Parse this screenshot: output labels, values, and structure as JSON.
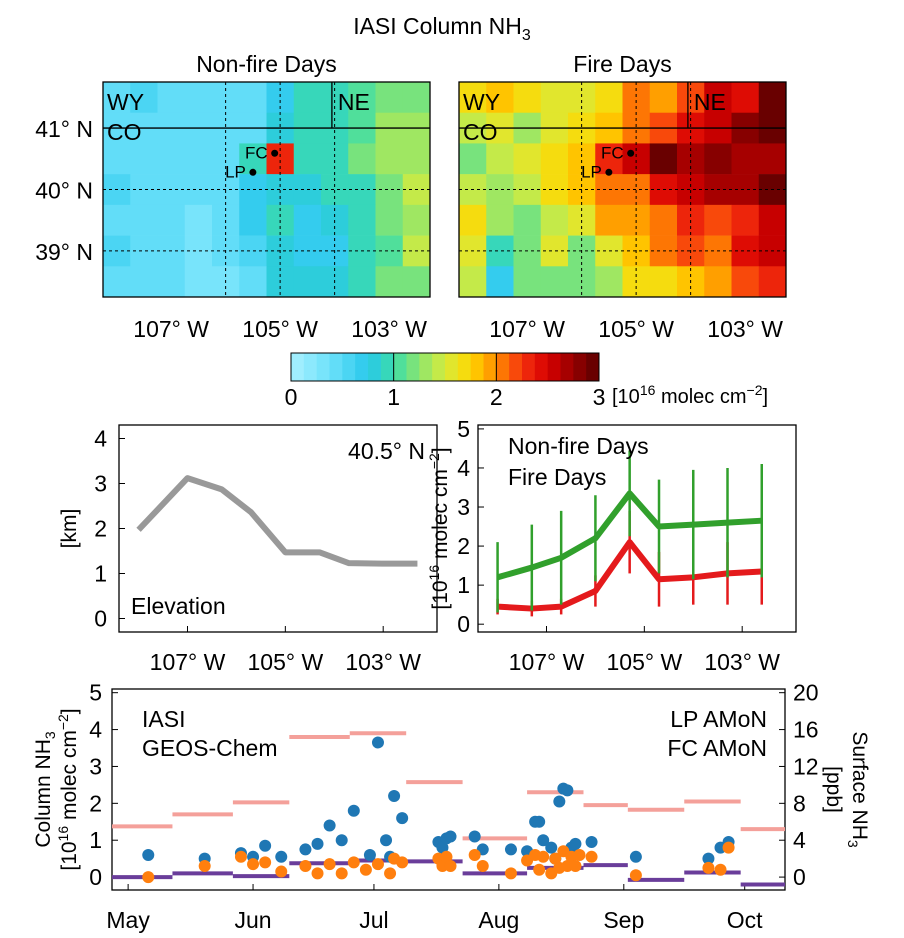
{
  "figure": {
    "title": "IASI Column NH₃"
  },
  "chart_data": [
    {
      "type": "heatmap",
      "title": "Non-fire Days",
      "x_ticks": [
        "107° W",
        "105° W",
        "103° W"
      ],
      "x_tick_values": [
        -107,
        -105,
        -103
      ],
      "y_ticks": [
        "41° N",
        "40° N",
        "39° N"
      ],
      "y_tick_values": [
        41,
        40,
        39
      ],
      "xlim": [
        -108.25,
        -102.25
      ],
      "ylim": [
        38.25,
        41.75
      ],
      "grid": "dashed at 106, 105, 104 W and 40, 39 N",
      "state_labels": [
        "WY",
        "CO",
        "NE"
      ],
      "sites": [
        {
          "label": "FC",
          "lon": -105.1,
          "lat": 40.59
        },
        {
          "label": "LP",
          "lon": -105.5,
          "lat": 40.28
        }
      ],
      "cell_size_deg": 0.5,
      "rows_lat_top_to_bottom": [
        41.5,
        41.0,
        40.5,
        40.0,
        39.5,
        39.0,
        38.5
      ],
      "cols_lon_left_to_right": [
        -108.0,
        -107.5,
        -107.0,
        -106.5,
        -106.0,
        -105.5,
        -105.0,
        -104.5,
        -104.0,
        -103.5,
        -103.0,
        -102.5
      ],
      "values": [
        [
          0.45,
          0.55,
          0.4,
          0.4,
          0.4,
          0.4,
          0.7,
          1.0,
          1.0,
          1.1,
          1.2,
          1.2
        ],
        [
          0.4,
          0.45,
          0.4,
          0.4,
          0.4,
          0.5,
          0.85,
          1.0,
          1.0,
          1.1,
          1.3,
          1.3
        ],
        [
          0.45,
          0.45,
          0.4,
          0.4,
          0.4,
          0.9,
          2.3,
          1.0,
          1.0,
          1.2,
          1.3,
          1.3
        ],
        [
          0.55,
          0.4,
          0.4,
          0.4,
          0.45,
          0.7,
          0.85,
          0.8,
          0.95,
          1.0,
          1.2,
          1.4
        ],
        [
          0.4,
          0.4,
          0.4,
          0.35,
          0.4,
          0.75,
          0.95,
          0.7,
          0.8,
          0.95,
          1.25,
          1.35
        ],
        [
          0.55,
          0.4,
          0.4,
          0.35,
          0.4,
          0.55,
          0.85,
          0.7,
          0.75,
          0.9,
          1.1,
          1.4
        ],
        [
          0.45,
          0.4,
          0.4,
          0.35,
          0.35,
          0.4,
          0.8,
          0.8,
          0.8,
          0.9,
          1.2,
          1.2
        ]
      ]
    },
    {
      "type": "heatmap",
      "title": "Fire Days",
      "x_ticks": [
        "107° W",
        "105° W",
        "103° W"
      ],
      "x_tick_values": [
        -107,
        -105,
        -103
      ],
      "xlim": [
        -108.25,
        -102.25
      ],
      "ylim": [
        38.25,
        41.75
      ],
      "grid": "dashed at 106, 105, 104 W and 40, 39 N",
      "state_labels": [
        "WY",
        "CO",
        "NE"
      ],
      "sites": [
        {
          "label": "FC",
          "lon": -105.1,
          "lat": 40.59
        },
        {
          "label": "LP",
          "lon": -105.5,
          "lat": 40.28
        }
      ],
      "cell_size_deg": 0.5,
      "rows_lat_top_to_bottom": [
        41.5,
        41.0,
        40.5,
        40.0,
        39.5,
        39.0,
        38.5
      ],
      "cols_lon_left_to_right": [
        -108.0,
        -107.5,
        -107.0,
        -106.5,
        -106.0,
        -105.5,
        -105.0,
        -104.5,
        -104.0,
        -103.5,
        -103.0,
        -102.5
      ],
      "values": [
        [
          1.75,
          1.85,
          1.65,
          1.55,
          1.6,
          1.75,
          2.05,
          1.95,
          2.25,
          2.55,
          2.45,
          2.9
        ],
        [
          1.4,
          1.55,
          1.35,
          1.55,
          1.75,
          1.85,
          2.05,
          2.2,
          2.5,
          2.55,
          2.8,
          2.95
        ],
        [
          1.25,
          1.45,
          1.55,
          1.65,
          1.85,
          2.3,
          2.55,
          3.0,
          2.65,
          2.8,
          2.7,
          2.75
        ],
        [
          1.45,
          1.35,
          1.45,
          1.75,
          1.85,
          2.05,
          2.1,
          2.4,
          2.55,
          2.65,
          2.7,
          3.05
        ],
        [
          1.75,
          1.35,
          1.15,
          1.45,
          1.55,
          1.95,
          2.0,
          2.05,
          2.35,
          2.2,
          2.35,
          2.6
        ],
        [
          1.6,
          0.95,
          1.15,
          1.55,
          1.15,
          1.55,
          1.8,
          2.05,
          2.15,
          2.1,
          2.4,
          2.55
        ],
        [
          1.45,
          0.75,
          1.15,
          1.25,
          1.15,
          1.35,
          1.75,
          1.65,
          1.85,
          1.95,
          2.2,
          2.35
        ]
      ]
    },
    {
      "type": "colorbar",
      "ticks": [
        "0",
        "1",
        "2",
        "3"
      ],
      "tick_values": [
        0,
        1,
        2,
        3
      ],
      "range": [
        0,
        3
      ],
      "n_levels": 24,
      "label_prefix": "[10",
      "label_exp1": "16",
      "label_mid": " molec cm",
      "label_exp2": "−2",
      "label_suffix": "]"
    },
    {
      "type": "line",
      "annotation": "40.5° N",
      "series": [
        {
          "name": "Elevation",
          "color": "#999999",
          "x": [
            -108.0,
            -107.0,
            -106.3,
            -105.7,
            -105.0,
            -104.3,
            -103.7,
            -103.0,
            -102.3
          ],
          "y": [
            1.97,
            3.12,
            2.87,
            2.36,
            1.47,
            1.47,
            1.23,
            1.22,
            1.22
          ]
        }
      ],
      "ylabel": "[km]",
      "yticks": [
        "0",
        "1",
        "2",
        "3",
        "4"
      ],
      "ytick_values": [
        0,
        1,
        2,
        3,
        4
      ],
      "ylim": [
        -0.3,
        4.3
      ],
      "xlim": [
        -108.4,
        -101.9
      ],
      "x_ticks": [
        "107° W",
        "105° W",
        "103° W"
      ],
      "x_tick_values": [
        -107,
        -105,
        -103
      ]
    },
    {
      "type": "line",
      "series": [
        {
          "name": "Non-fire Days",
          "color": "#e41a1c",
          "x": [
            -108.0,
            -107.3,
            -106.7,
            -106.0,
            -105.3,
            -104.7,
            -104.0,
            -103.3,
            -102.6
          ],
          "y": [
            0.45,
            0.4,
            0.45,
            0.85,
            2.1,
            1.15,
            1.2,
            1.3,
            1.35
          ],
          "err": [
            0.2,
            0.2,
            0.2,
            0.4,
            0.8,
            0.7,
            0.7,
            0.8,
            0.85
          ]
        },
        {
          "name": "Fire Days",
          "color": "#31a02c",
          "x": [
            -108.0,
            -107.3,
            -106.7,
            -106.0,
            -105.3,
            -104.7,
            -104.0,
            -103.3,
            -102.6
          ],
          "y": [
            1.2,
            1.45,
            1.7,
            2.2,
            3.35,
            2.5,
            2.55,
            2.6,
            2.65
          ],
          "err": [
            0.9,
            1.1,
            1.2,
            1.1,
            1.1,
            1.2,
            1.4,
            1.4,
            1.45
          ]
        }
      ],
      "ylabel_prefix": "[10",
      "ylabel_exp1": "16",
      "ylabel_mid": " molec cm",
      "ylabel_exp2": "−2",
      "ylabel_suffix": "]",
      "yticks": [
        "0",
        "1",
        "2",
        "3",
        "4",
        "5"
      ],
      "ytick_values": [
        0,
        1,
        2,
        3,
        4,
        5
      ],
      "ylim": [
        -0.2,
        5.1
      ],
      "xlim": [
        -108.4,
        -101.9
      ],
      "x_ticks": [
        "107° W",
        "105° W",
        "103° W"
      ],
      "x_tick_values": [
        -107,
        -105,
        -103
      ],
      "legend": "top-left"
    },
    {
      "type": "scatter",
      "x_unit": "day of year",
      "xlim": [
        117,
        284
      ],
      "x_ticks": [
        "May",
        "Jun",
        "Jul",
        "Aug",
        "Sep",
        "Oct"
      ],
      "x_tick_values": [
        121,
        152,
        182,
        213,
        244,
        274
      ],
      "ylim": [
        -0.35,
        5.1
      ],
      "yticks": [
        "0",
        "1",
        "2",
        "3",
        "4",
        "5"
      ],
      "ytick_values": [
        0,
        1,
        2,
        3,
        4,
        5
      ],
      "ylabel_line1_prefix": "Column NH",
      "ylabel_line1_sub": "3",
      "ylabel_line2_prefix": "[10",
      "ylabel_line2_exp1": "16",
      "ylabel_line2_mid": " molec cm",
      "ylabel_line2_exp2": "−2",
      "ylabel_line2_suffix": "]",
      "y2lim": [
        -1.4,
        20.4
      ],
      "y2ticks": [
        "0",
        "4",
        "8",
        "12",
        "16",
        "20"
      ],
      "y2tick_values": [
        0,
        4,
        8,
        12,
        16,
        20
      ],
      "y2label_prefix": "Surface NH",
      "y2label_sub": "3",
      "y2label_units": "[ppb]",
      "legend_left": [
        "IASI",
        "GEOS-Chem"
      ],
      "legend_right": [
        "LP AMoN",
        "FC AMoN"
      ],
      "series": [
        {
          "name": "IASI",
          "color": "#1f77b4",
          "axis": "left",
          "points": [
            [
              126,
              0.6
            ],
            [
              140,
              0.5
            ],
            [
              149,
              0.65
            ],
            [
              152,
              0.55
            ],
            [
              155,
              0.85
            ],
            [
              159,
              0.55
            ],
            [
              165,
              0.75
            ],
            [
              168,
              0.9
            ],
            [
              171,
              1.4
            ],
            [
              174,
              1.0
            ],
            [
              177,
              1.8
            ],
            [
              181,
              0.6
            ],
            [
              183,
              3.65
            ],
            [
              185,
              1.0
            ],
            [
              186,
              0.55
            ],
            [
              187,
              2.2
            ],
            [
              189,
              1.6
            ],
            [
              198,
              0.95
            ],
            [
              199,
              0.8
            ],
            [
              200,
              1.05
            ],
            [
              201,
              1.1
            ],
            [
              207,
              1.1
            ],
            [
              209,
              0.75
            ],
            [
              216,
              0.75
            ],
            [
              220,
              0.7
            ],
            [
              222,
              1.5
            ],
            [
              223,
              1.5
            ],
            [
              224,
              1.0
            ],
            [
              226,
              0.8
            ],
            [
              227,
              0.5
            ],
            [
              228,
              2.05
            ],
            [
              229,
              2.4
            ],
            [
              230,
              2.35
            ],
            [
              231,
              0.8
            ],
            [
              232,
              0.9
            ],
            [
              236,
              0.95
            ],
            [
              247,
              0.55
            ],
            [
              265,
              0.5
            ],
            [
              268,
              0.8
            ],
            [
              270,
              0.95
            ]
          ]
        },
        {
          "name": "GEOS-Chem",
          "color": "#ff7f0e",
          "axis": "left",
          "points": [
            [
              126,
              0.0
            ],
            [
              140,
              0.3
            ],
            [
              149,
              0.55
            ],
            [
              152,
              0.35
            ],
            [
              155,
              0.4
            ],
            [
              159,
              0.15
            ],
            [
              165,
              0.3
            ],
            [
              168,
              0.1
            ],
            [
              171,
              0.35
            ],
            [
              174,
              0.1
            ],
            [
              177,
              0.4
            ],
            [
              180,
              0.2
            ],
            [
              183,
              0.35
            ],
            [
              186,
              0.1
            ],
            [
              187,
              0.5
            ],
            [
              189,
              0.4
            ],
            [
              198,
              0.5
            ],
            [
              199,
              0.3
            ],
            [
              200,
              0.55
            ],
            [
              201,
              0.3
            ],
            [
              207,
              0.6
            ],
            [
              209,
              0.3
            ],
            [
              216,
              0.1
            ],
            [
              220,
              0.45
            ],
            [
              222,
              0.6
            ],
            [
              223,
              0.2
            ],
            [
              224,
              0.55
            ],
            [
              226,
              0.1
            ],
            [
              227,
              0.5
            ],
            [
              228,
              0.25
            ],
            [
              229,
              0.7
            ],
            [
              230,
              0.3
            ],
            [
              231,
              0.55
            ],
            [
              232,
              0.3
            ],
            [
              233,
              0.6
            ],
            [
              236,
              0.55
            ],
            [
              247,
              0.05
            ],
            [
              265,
              0.25
            ],
            [
              268,
              0.2
            ],
            [
              270,
              0.8
            ]
          ]
        },
        {
          "name": "LP AMoN",
          "color": "#6a3d9a",
          "axis": "right",
          "segments": [
            [
              117,
              132,
              0.0
            ],
            [
              132,
              147,
              0.4
            ],
            [
              147,
              161,
              0.1
            ],
            [
              161,
              176,
              1.5
            ],
            [
              176,
              190,
              1.8
            ],
            [
              190,
              204,
              1.7
            ],
            [
              204,
              220,
              0.4
            ],
            [
              220,
              234,
              1.0
            ],
            [
              234,
              245,
              1.3
            ],
            [
              245,
              259,
              -0.3
            ],
            [
              259,
              273,
              0.5
            ],
            [
              273,
              284,
              -0.8
            ]
          ]
        },
        {
          "name": "FC AMoN",
          "color": "#f4a09a",
          "axis": "right",
          "segments": [
            [
              117,
              132,
              5.5
            ],
            [
              132,
              147,
              6.8
            ],
            [
              147,
              161,
              8.1
            ],
            [
              161,
              176,
              15.2
            ],
            [
              176,
              190,
              15.6
            ],
            [
              190,
              204,
              10.3
            ],
            [
              204,
              220,
              4.2
            ],
            [
              220,
              234,
              9.2
            ],
            [
              234,
              245,
              7.8
            ],
            [
              245,
              259,
              7.3
            ],
            [
              259,
              273,
              8.2
            ],
            [
              273,
              284,
              5.2
            ]
          ]
        }
      ]
    }
  ]
}
